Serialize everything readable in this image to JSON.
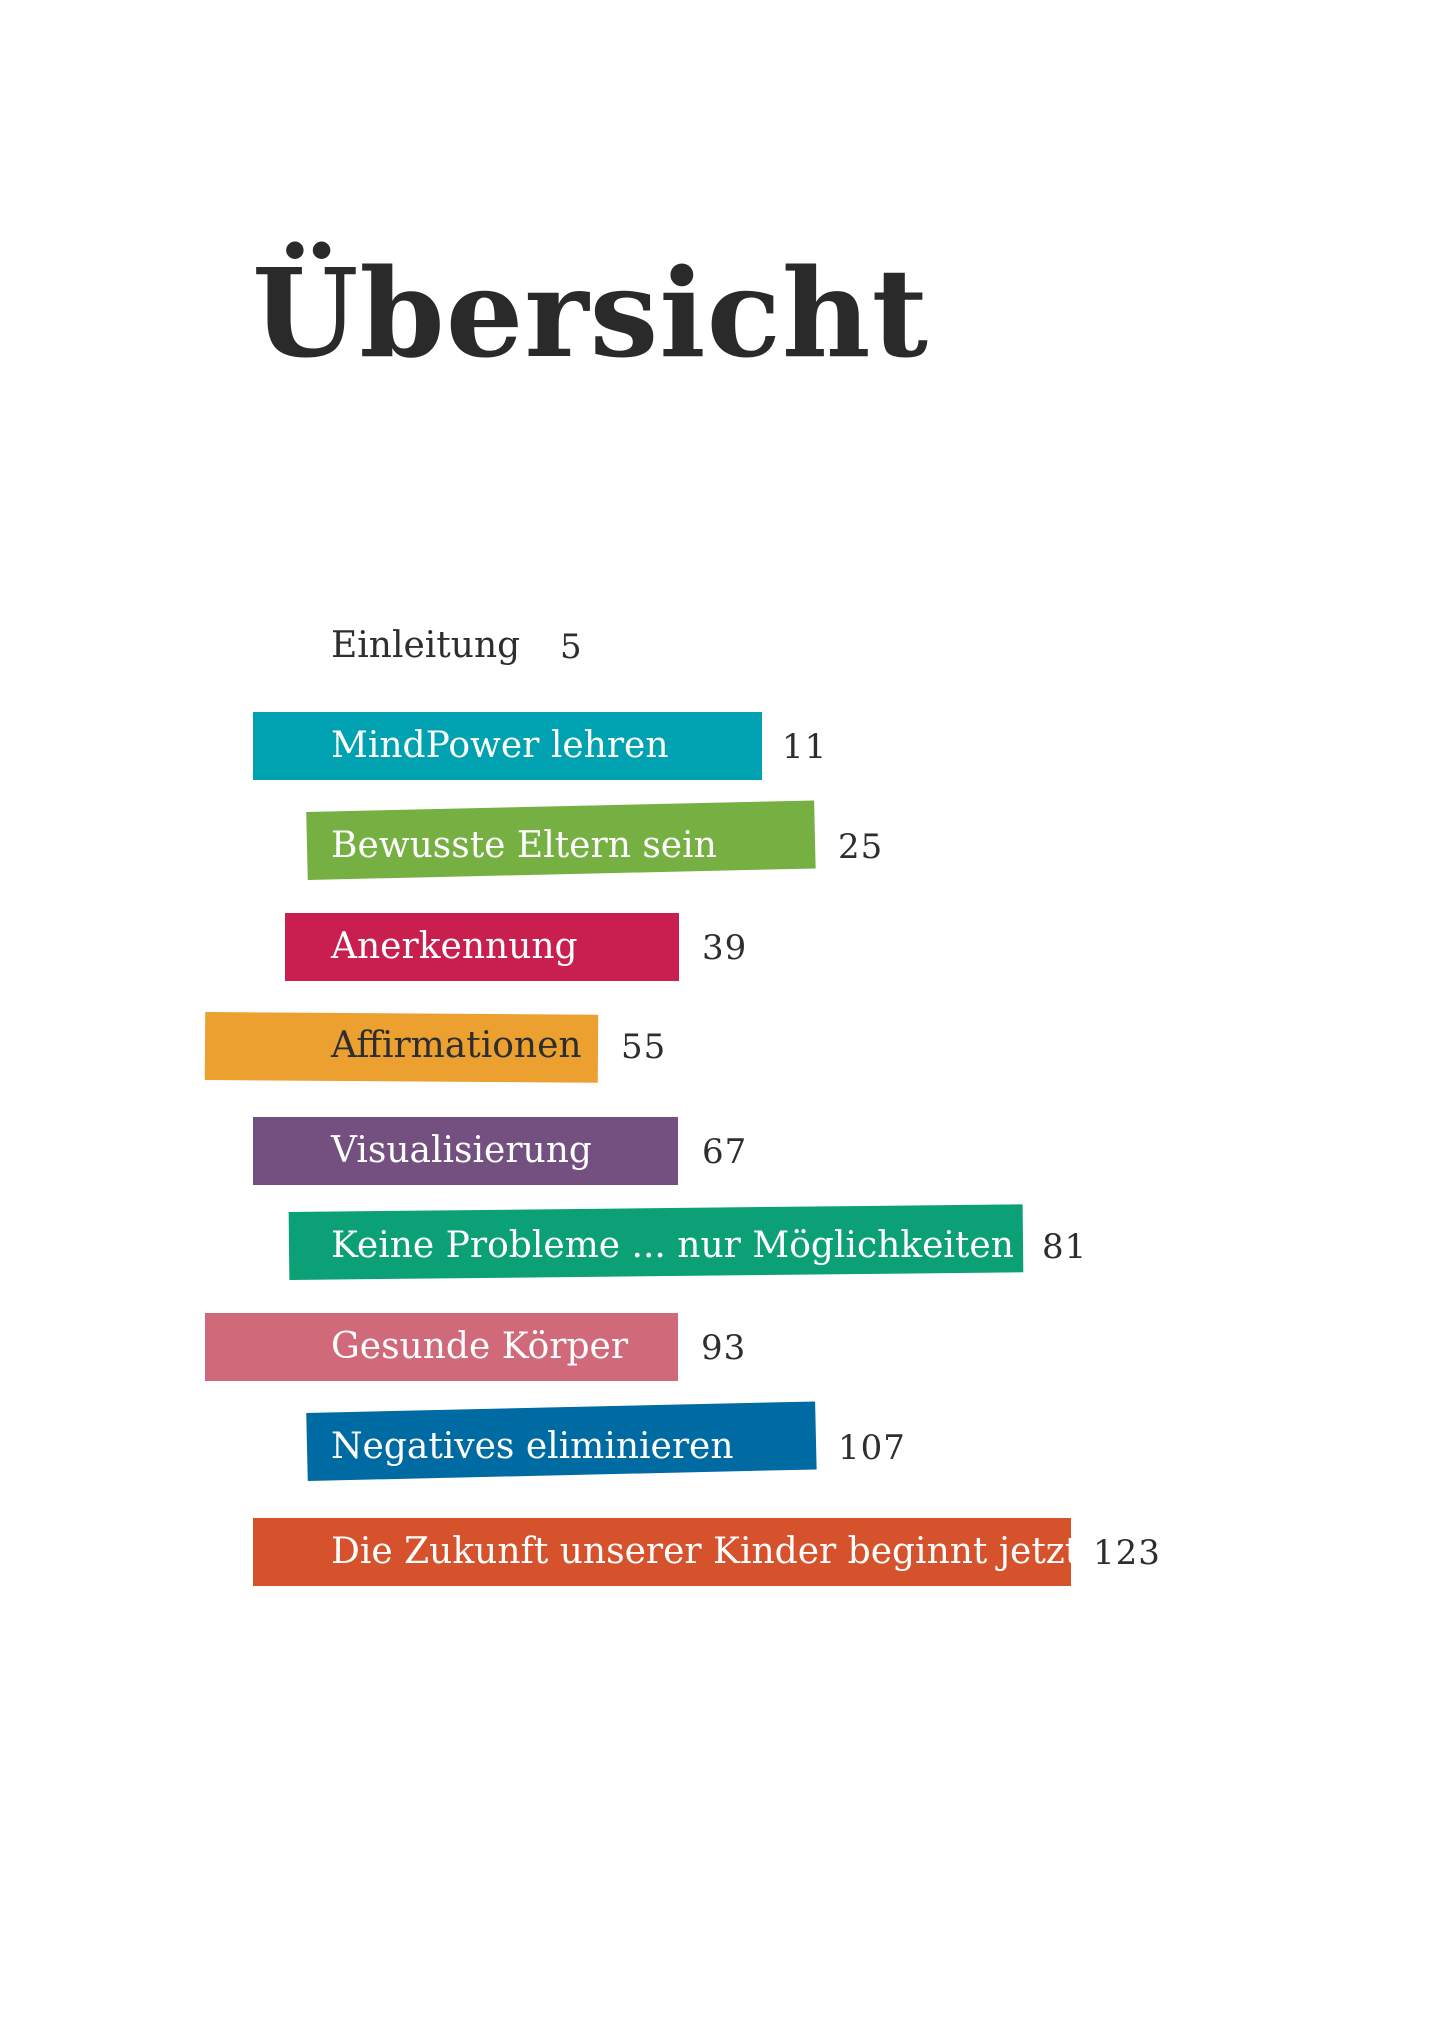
{
  "title": "Übersicht",
  "toc": [
    {
      "label": "Einleitung",
      "page": "5",
      "color": ""
    },
    {
      "label": "MindPower lehren",
      "page": "11",
      "color": "#00a1b0"
    },
    {
      "label": "Bewusste Eltern sein",
      "page": "25",
      "color": "#76b043"
    },
    {
      "label": "Anerkennung",
      "page": "39",
      "color": "#c81f4f"
    },
    {
      "label": "Affirmationen",
      "page": "55",
      "color": "#eca02f"
    },
    {
      "label": "Visualisierung",
      "page": "67",
      "color": "#73507f"
    },
    {
      "label": "Keine Probleme ... nur Möglichkeiten",
      "page": "81",
      "color": "#0ba076"
    },
    {
      "label": "Gesunde Körper",
      "page": "93",
      "color": "#d0697a"
    },
    {
      "label": "Negatives eliminieren",
      "page": "107",
      "color": "#006ba3"
    },
    {
      "label": "Die Zukunft unserer Kinder beginnt jetzt",
      "page": "123",
      "color": "#d5522d"
    }
  ]
}
